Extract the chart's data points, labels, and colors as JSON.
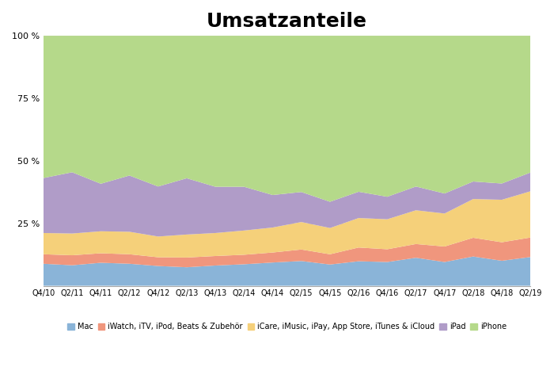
{
  "title": "Umsatzanteile",
  "x_labels": [
    "Q4/10",
    "Q2/11",
    "Q4/11",
    "Q2/12",
    "Q4/12",
    "Q2/13",
    "Q4/13",
    "Q2/14",
    "Q4/14",
    "Q2/15",
    "Q4/15",
    "Q2/16",
    "Q4/16",
    "Q2/17",
    "Q4/17",
    "Q2/18",
    "Q4/18",
    "Q2/19"
  ],
  "legend_labels": [
    "Mac",
    "iWatch, iTV, iPod, Beats & Zubehör",
    "iCare, iMusic, iPay, App Store, iTunes & iCloud",
    "iPad",
    "iPhone"
  ],
  "colors": [
    "#8ab4d8",
    "#f0967d",
    "#f5d07a",
    "#b09cc8",
    "#b5d98a"
  ],
  "data": {
    "Mac": [
      8.8,
      8.2,
      9.2,
      8.8,
      7.9,
      7.4,
      8.1,
      8.6,
      9.3,
      9.9,
      8.5,
      9.8,
      9.5,
      11.2,
      9.5,
      11.7,
      10.0,
      11.5
    ],
    "iWatch": [
      3.8,
      4.0,
      3.8,
      3.8,
      3.5,
      3.9,
      3.8,
      3.8,
      4.0,
      4.6,
      4.1,
      5.5,
      5.1,
      5.5,
      6.2,
      7.5,
      7.4,
      7.8
    ],
    "iServices": [
      8.5,
      8.7,
      8.8,
      9.0,
      8.3,
      9.2,
      9.2,
      9.7,
      10.0,
      11.0,
      10.5,
      11.8,
      12.0,
      13.5,
      13.2,
      15.5,
      17.0,
      18.5
    ],
    "iPad": [
      22.0,
      24.5,
      19.0,
      22.5,
      20.0,
      22.5,
      18.5,
      17.5,
      13.0,
      12.0,
      10.5,
      10.5,
      9.0,
      9.5,
      8.0,
      7.0,
      6.5,
      7.5
    ],
    "iPhone": [
      56.9,
      54.6,
      59.2,
      55.9,
      60.3,
      57.0,
      60.4,
      60.4,
      63.7,
      62.5,
      66.4,
      62.4,
      64.4,
      60.3,
      63.1,
      58.3,
      59.1,
      54.7
    ]
  },
  "ylim": [
    0,
    100
  ],
  "yticks": [
    0,
    25,
    50,
    75,
    100
  ],
  "ytick_labels": [
    "",
    "25 %",
    "50 %",
    "75 %",
    "100 %"
  ],
  "background_color": "#ffffff",
  "plot_bg_color": "#ffffff",
  "title_fontsize": 18,
  "legend_fontsize": 7.0
}
